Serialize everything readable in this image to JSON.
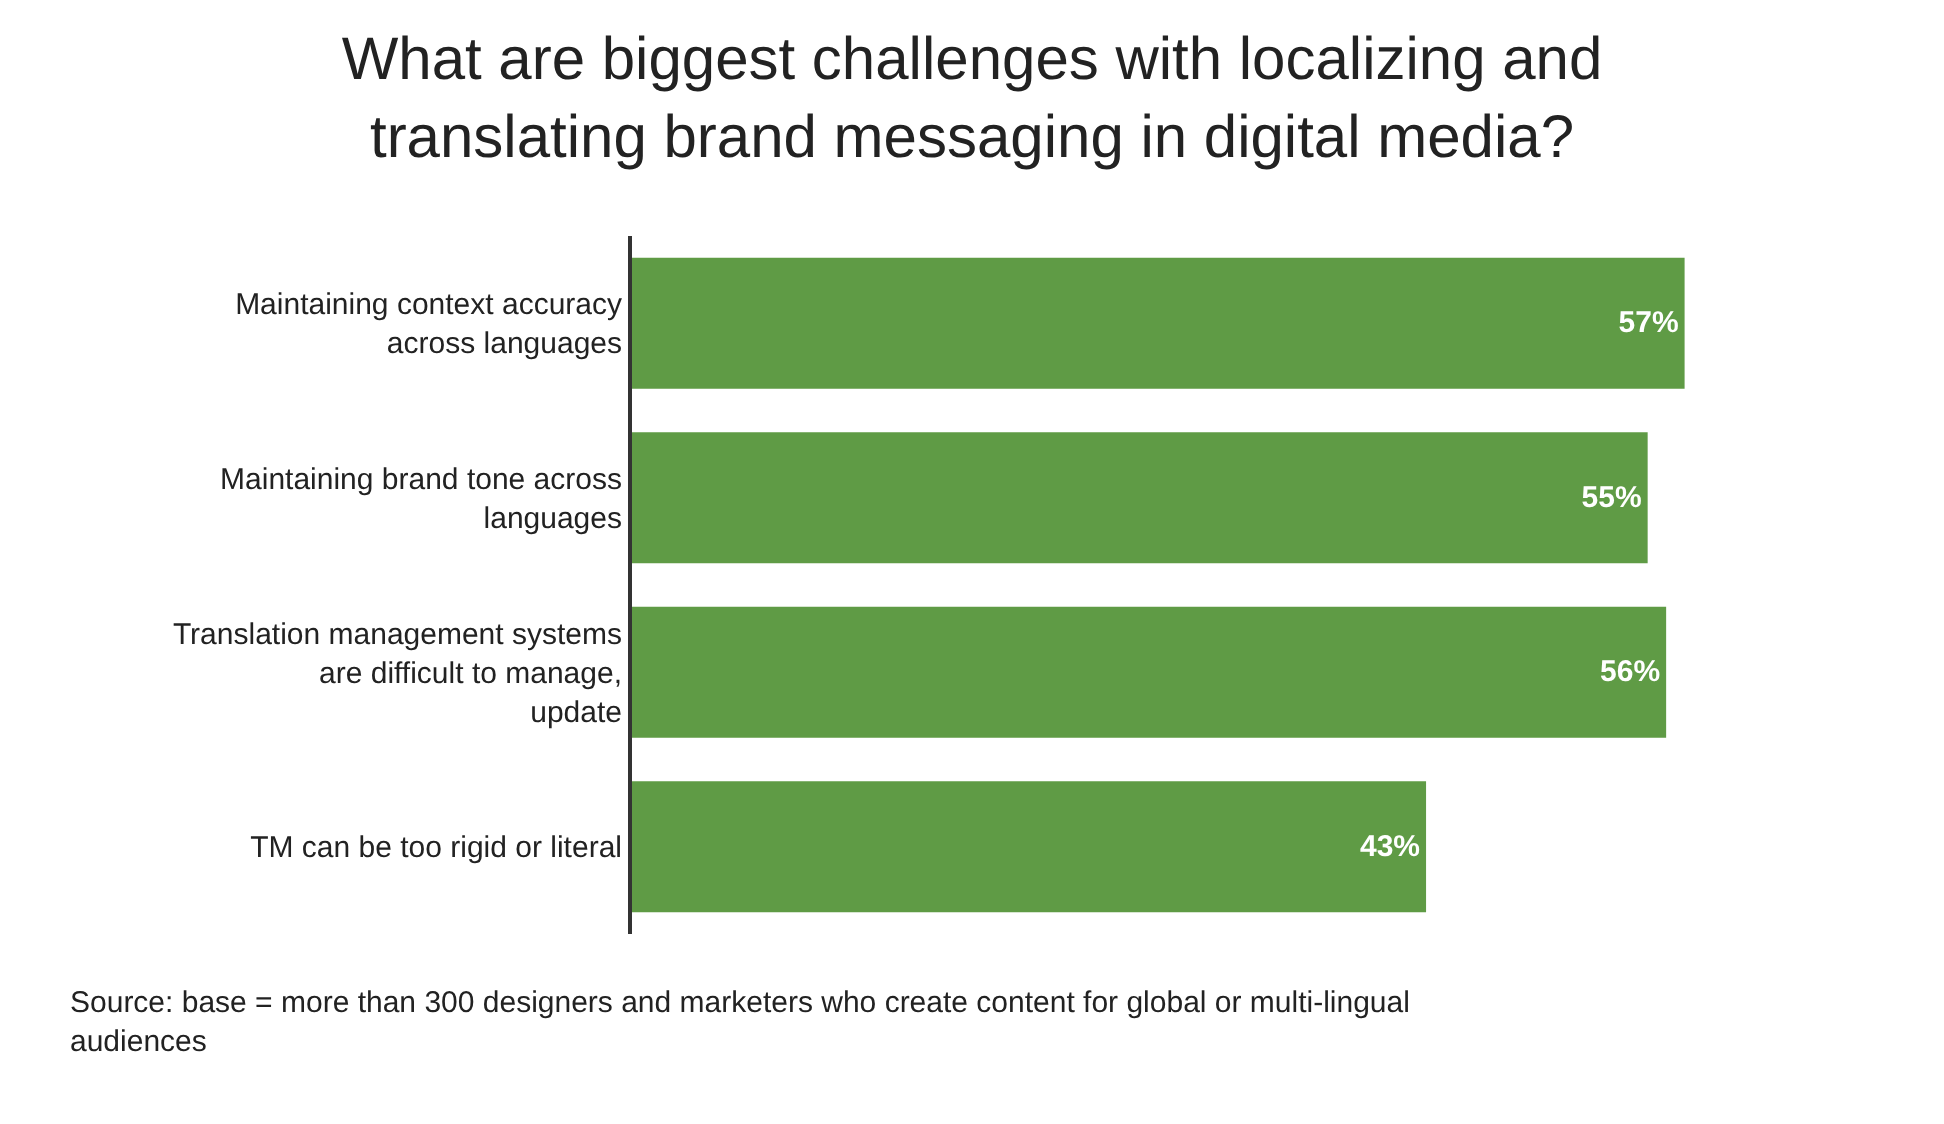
{
  "chart_data": {
    "type": "bar",
    "orientation": "horizontal",
    "title": "What are biggest challenges with localizing and translating brand messaging in digital media?",
    "categories": [
      "Maintaining context accuracy across languages",
      "Maintaining brand tone across languages",
      "Translation management systems are difficult to manage, update",
      "TM can be too rigid or literal"
    ],
    "values": [
      57,
      55,
      56,
      43
    ],
    "value_labels": [
      "57%",
      "55%",
      "56%",
      "43%"
    ],
    "color": "#5f9b45",
    "annotations": [
      "Source: base = more than 300 designers and marketers who create content for global or multi-lingual audiences"
    ],
    "legend": false
  }
}
